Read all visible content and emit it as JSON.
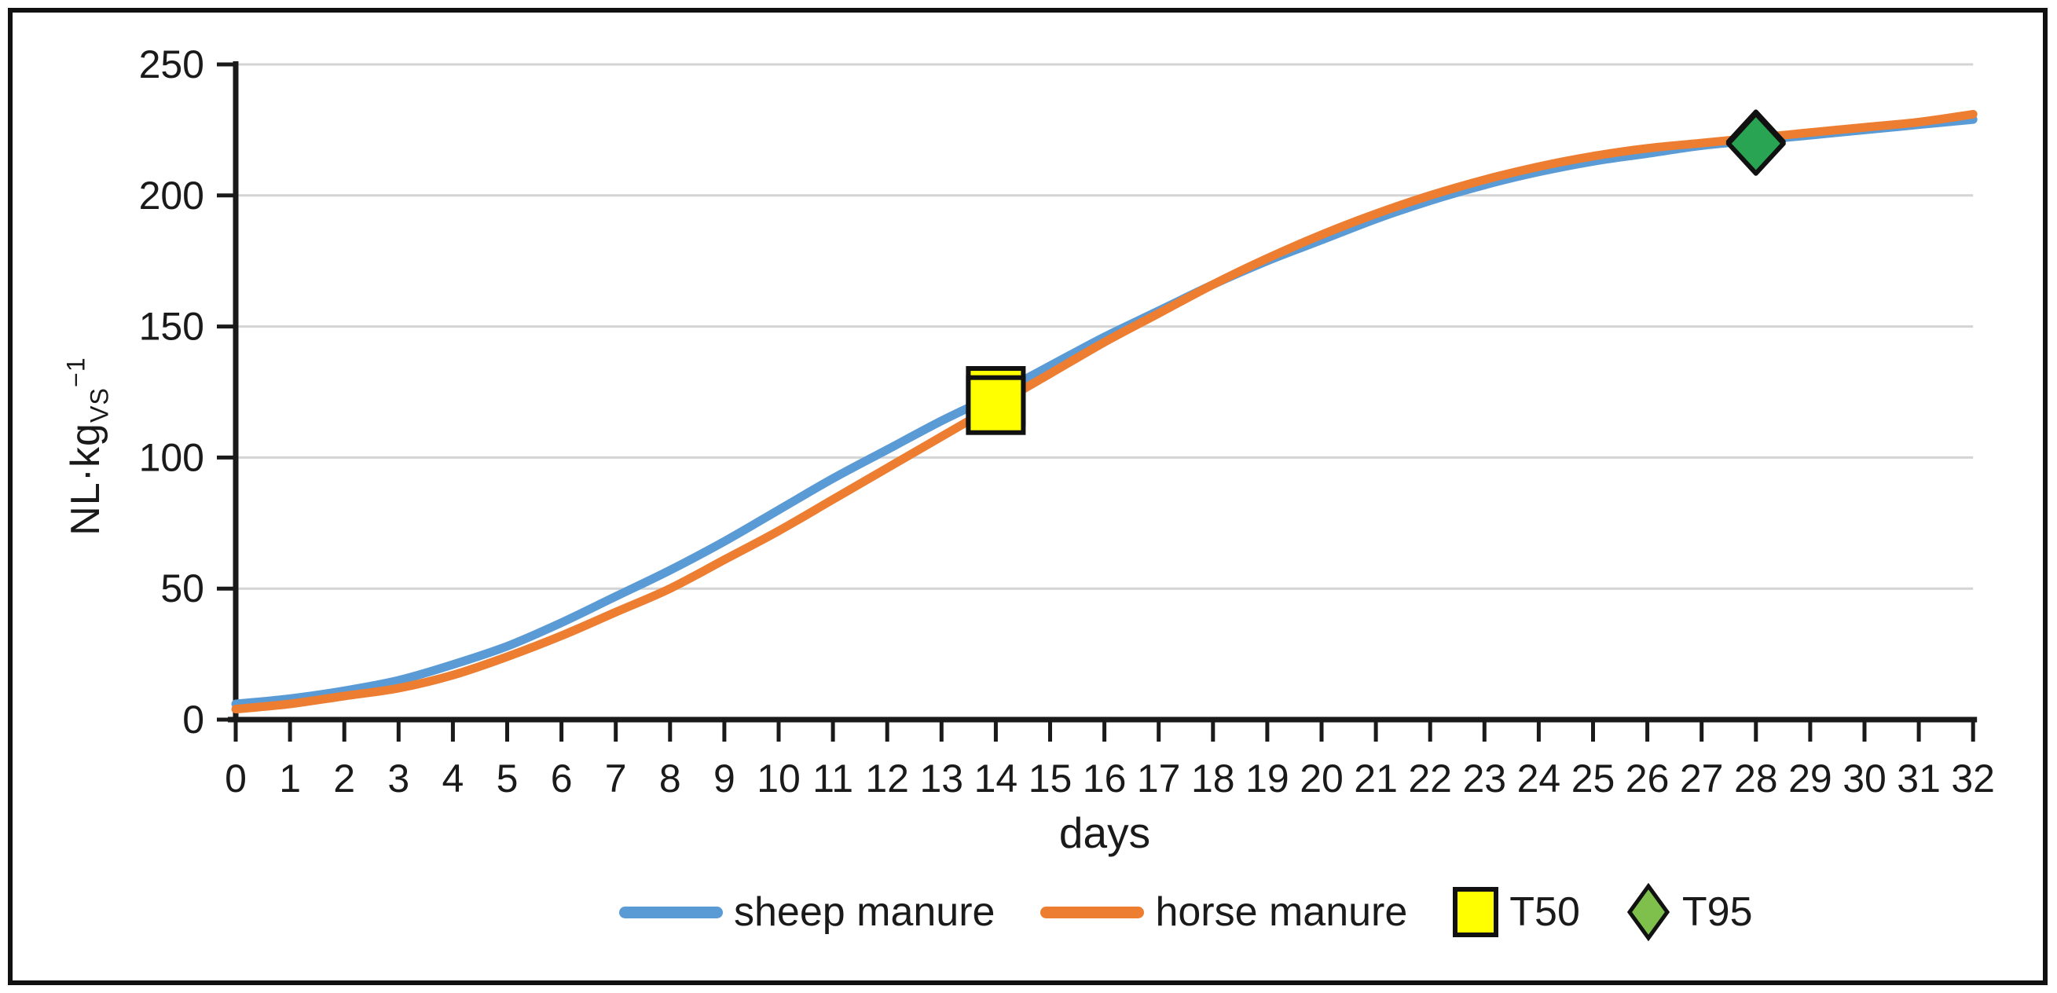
{
  "figure": {
    "background": "#ffffff",
    "border_color": "#111111"
  },
  "chart_data": {
    "type": "line",
    "title": "",
    "xlabel": "days",
    "ylabel": "NL·kgVS−1",
    "ylabel_parts": {
      "main": "NL·kg",
      "sub": "VS",
      "sup": "−1"
    },
    "xlim": [
      0,
      32
    ],
    "ylim": [
      0,
      250
    ],
    "x_ticks": [
      0,
      1,
      2,
      3,
      4,
      5,
      6,
      7,
      8,
      9,
      10,
      11,
      12,
      13,
      14,
      15,
      16,
      17,
      18,
      19,
      20,
      21,
      22,
      23,
      24,
      25,
      26,
      27,
      28,
      29,
      30,
      31,
      32
    ],
    "y_ticks": [
      0,
      50,
      100,
      150,
      200,
      250
    ],
    "grid": "horizontal",
    "grid_color": "#d4d4d4",
    "axis_color": "#1a1a1a",
    "legend_position": "bottom",
    "x": [
      0,
      1,
      2,
      3,
      4,
      5,
      6,
      7,
      8,
      9,
      10,
      11,
      12,
      13,
      14,
      15,
      16,
      17,
      18,
      19,
      20,
      21,
      22,
      23,
      24,
      25,
      26,
      27,
      28,
      29,
      30,
      31,
      32
    ],
    "series": [
      {
        "name": "sheep manure",
        "color": "#5B9BD5",
        "values": [
          6,
          8,
          11,
          15,
          21,
          28,
          37,
          47,
          57,
          68,
          80,
          92,
          103,
          114,
          124,
          135,
          146,
          156,
          166,
          175,
          183,
          191,
          198,
          204,
          209,
          213,
          216,
          219,
          221,
          223,
          225,
          227,
          229
        ]
      },
      {
        "name": "horse manure",
        "color": "#ED7D31",
        "values": [
          4,
          6,
          9,
          12,
          17,
          24,
          32,
          41,
          50,
          61,
          72,
          84,
          96,
          108,
          120,
          132,
          144,
          155,
          166,
          176,
          185,
          193,
          200,
          206,
          211,
          215,
          218,
          220,
          222,
          224,
          226,
          228,
          231
        ]
      }
    ],
    "markers": [
      {
        "name": "T50",
        "shape": "square",
        "fill": "#FFFF00",
        "legend_fill": "#FFFF00",
        "stroke": "#111111",
        "points": [
          {
            "series": "sheep manure",
            "x": 14,
            "y": 123.5
          },
          {
            "series": "horse manure",
            "x": 14,
            "y": 120
          }
        ]
      },
      {
        "name": "T95",
        "shape": "diamond",
        "fill": "#28A452",
        "legend_fill": "#7FBF4C",
        "stroke": "#111111",
        "points": [
          {
            "series": "sheep manure",
            "x": 28,
            "y": 220.5
          },
          {
            "series": "horse manure",
            "x": 28,
            "y": 219.8
          }
        ]
      }
    ]
  }
}
